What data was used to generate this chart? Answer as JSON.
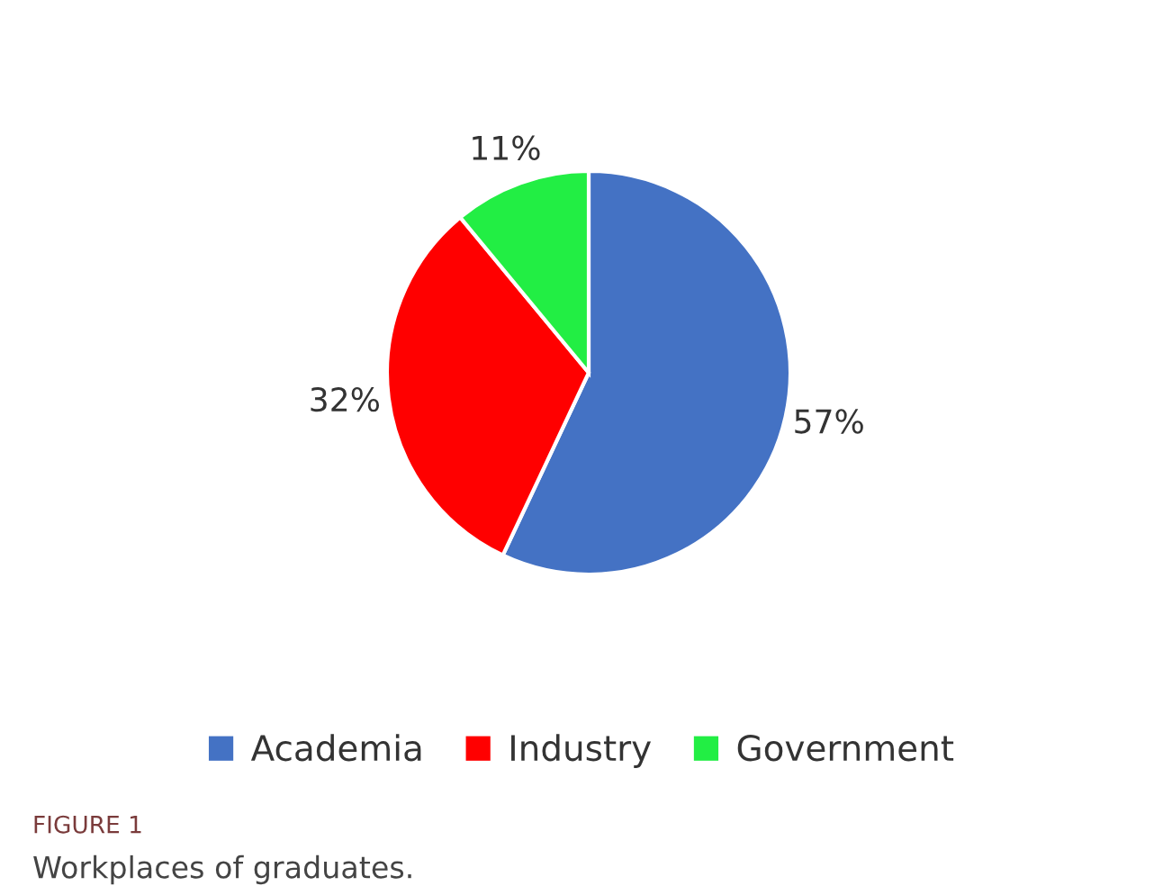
{
  "chart_data": {
    "type": "pie",
    "categories": [
      "Academia",
      "Industry",
      "Government"
    ],
    "values": [
      57,
      32,
      11
    ],
    "colors": [
      "#4472c4",
      "#ff0000",
      "#22ee44"
    ],
    "value_labels": [
      "57%",
      "32%",
      "11%"
    ],
    "legend": "bottom",
    "annotations": [
      "FIGURE 1",
      "Workplaces of graduates."
    ]
  }
}
